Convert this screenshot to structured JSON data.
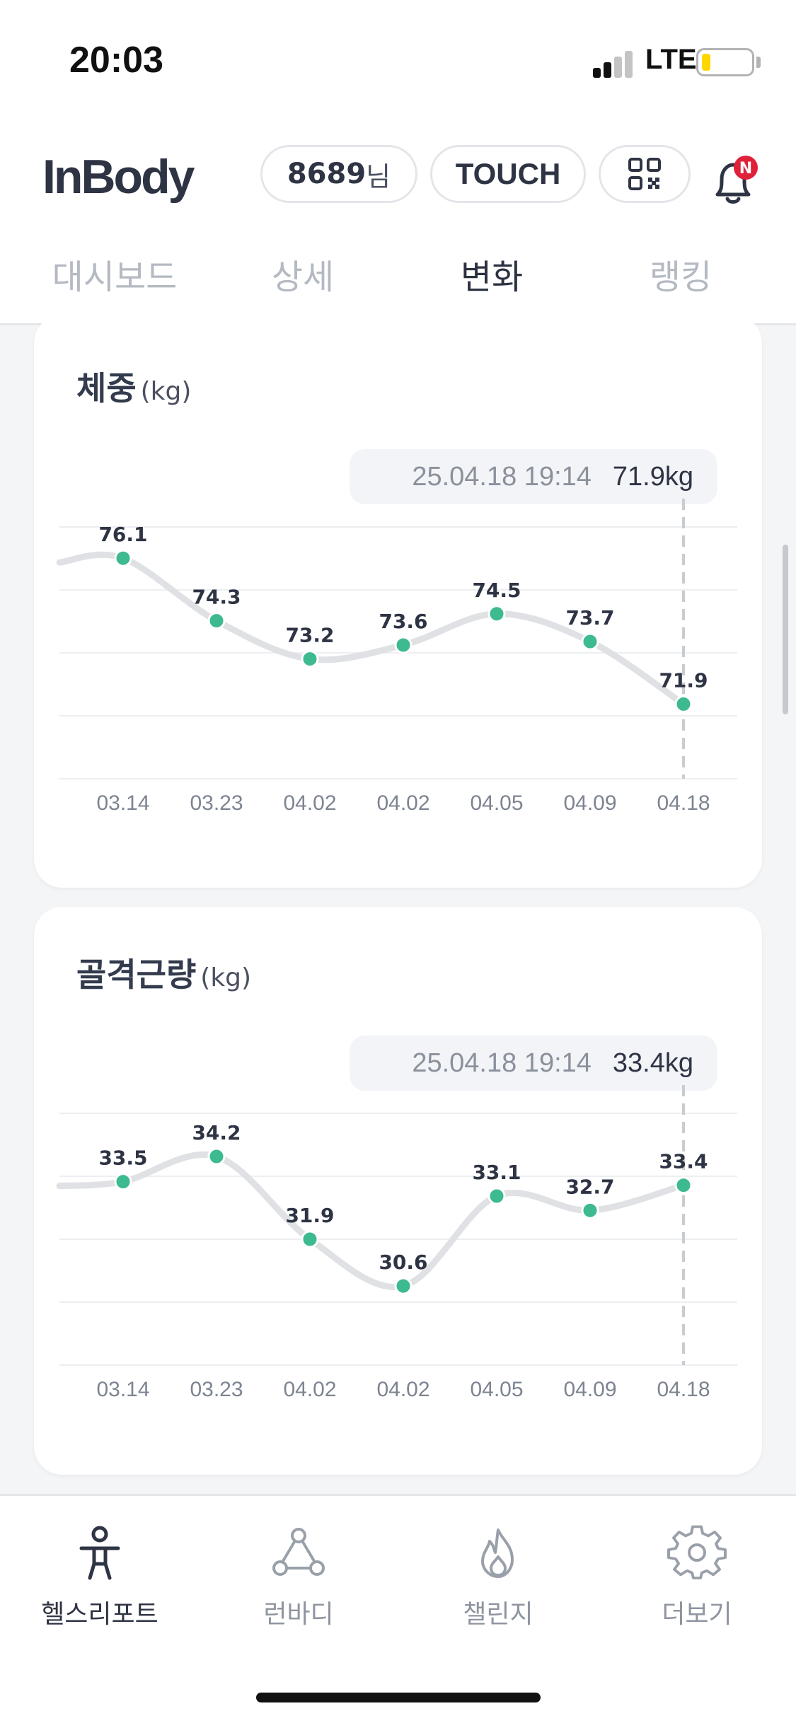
{
  "status_bar": {
    "time": "20:03",
    "network": "LTE"
  },
  "header": {
    "logo": "InBody",
    "user_id": "8689",
    "user_suffix": "님",
    "touch_label": "TOUCH",
    "notification_badge": "N"
  },
  "tabs": [
    {
      "label": "대시보드",
      "active": false
    },
    {
      "label": "상세",
      "active": false
    },
    {
      "label": "변화",
      "active": true
    },
    {
      "label": "랭킹",
      "active": false
    }
  ],
  "cards": [
    {
      "title": "체중",
      "unit": "(kg)",
      "tooltip_date": "25.04.18 19:14",
      "tooltip_value": "71.9kg"
    },
    {
      "title": "골격근량",
      "unit": "(kg)",
      "tooltip_date": "25.04.18 19:14",
      "tooltip_value": "33.4kg"
    }
  ],
  "chart_data": [
    {
      "type": "line",
      "title": "체중",
      "ylabel": "(kg)",
      "categories": [
        "03.14",
        "03.23",
        "04.02",
        "04.02",
        "04.05",
        "04.09",
        "04.18"
      ],
      "values": [
        76.1,
        74.3,
        73.2,
        73.6,
        74.5,
        73.7,
        71.9
      ],
      "grid": true,
      "line_color": "#dfe1e5",
      "point_color": "#3dba8f"
    },
    {
      "type": "line",
      "title": "골격근량",
      "ylabel": "(kg)",
      "categories": [
        "03.14",
        "03.23",
        "04.02",
        "04.02",
        "04.05",
        "04.09",
        "04.18"
      ],
      "values": [
        33.5,
        34.2,
        31.9,
        30.6,
        33.1,
        32.7,
        33.4
      ],
      "grid": true,
      "line_color": "#dfe1e5",
      "point_color": "#3dba8f"
    }
  ],
  "bottom_nav": [
    {
      "label": "헬스리포트",
      "icon": "health-report-icon",
      "active": true
    },
    {
      "label": "런바디",
      "icon": "runbody-icon",
      "active": false
    },
    {
      "label": "챌린지",
      "icon": "flame-icon",
      "active": false
    },
    {
      "label": "더보기",
      "icon": "gear-icon",
      "active": false
    }
  ],
  "colors": {
    "accent": "#3dba8f",
    "text_dark": "#2e3444",
    "text_muted": "#8f95a0"
  }
}
